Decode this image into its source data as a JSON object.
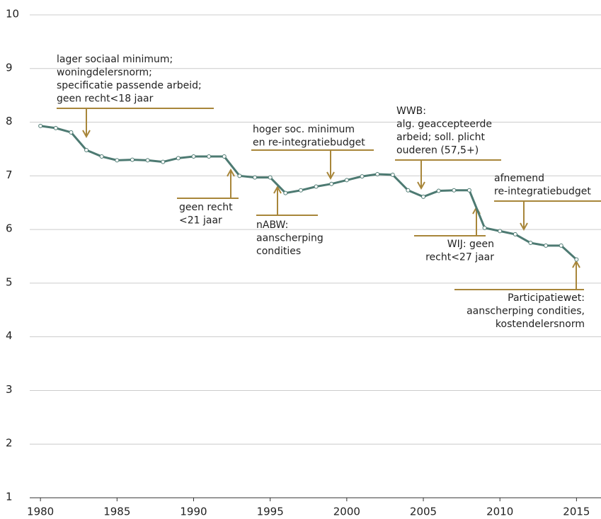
{
  "chart_data": {
    "type": "line",
    "x": [
      1980,
      1981,
      1982,
      1983,
      1984,
      1985,
      1986,
      1987,
      1988,
      1989,
      1990,
      1991,
      1992,
      1993,
      1994,
      1995,
      1996,
      1997,
      1998,
      1999,
      2000,
      2001,
      2002,
      2003,
      2004,
      2005,
      2006,
      2007,
      2008,
      2009,
      2010,
      2011,
      2012,
      2013,
      2014,
      2015
    ],
    "series": [
      {
        "color": "#4d7a72",
        "values": [
          7.93,
          7.89,
          7.81,
          7.48,
          7.36,
          7.29,
          7.3,
          7.29,
          7.26,
          7.33,
          7.36,
          7.36,
          7.36,
          7.0,
          6.97,
          6.97,
          6.68,
          6.73,
          6.8,
          6.85,
          6.92,
          6.99,
          7.03,
          7.02,
          6.73,
          6.61,
          6.72,
          6.73,
          6.73,
          6.03,
          5.97,
          5.91,
          5.75,
          5.7,
          5.7,
          5.44
        ]
      }
    ],
    "xlim": [
      1979.3,
      2016.6
    ],
    "xticks": [
      1980,
      1985,
      1990,
      1995,
      2000,
      2005,
      2010,
      2015
    ],
    "ylim": [
      1,
      10
    ],
    "yticks": [
      1,
      2,
      3,
      4,
      5,
      6,
      7,
      8,
      9,
      10
    ],
    "grid": true,
    "annotation_color": "#a8863a",
    "annotations": [
      [
        "lager sociaal minimum;",
        "woningdelersnorm;",
        "specificatie passende arbeid;",
        "geen recht<18 jaar"
      ],
      [
        "hoger soc. minimum",
        "en re-integratiebudget"
      ],
      [
        "WWB:",
        "alg. geaccepteerde",
        "arbeid; soll. plicht",
        "ouderen (57,5+)"
      ],
      [
        "afnemend",
        "re-integratiebudget"
      ],
      [
        "geen recht",
        "<21 jaar"
      ],
      [
        "nABW:",
        "aanscherping",
        "condities"
      ],
      [
        "WIJ: geen",
        "recht<27 jaar"
      ],
      [
        "Participatiewet:",
        "aanscherping condities,",
        "kostendelersnorm"
      ]
    ]
  }
}
